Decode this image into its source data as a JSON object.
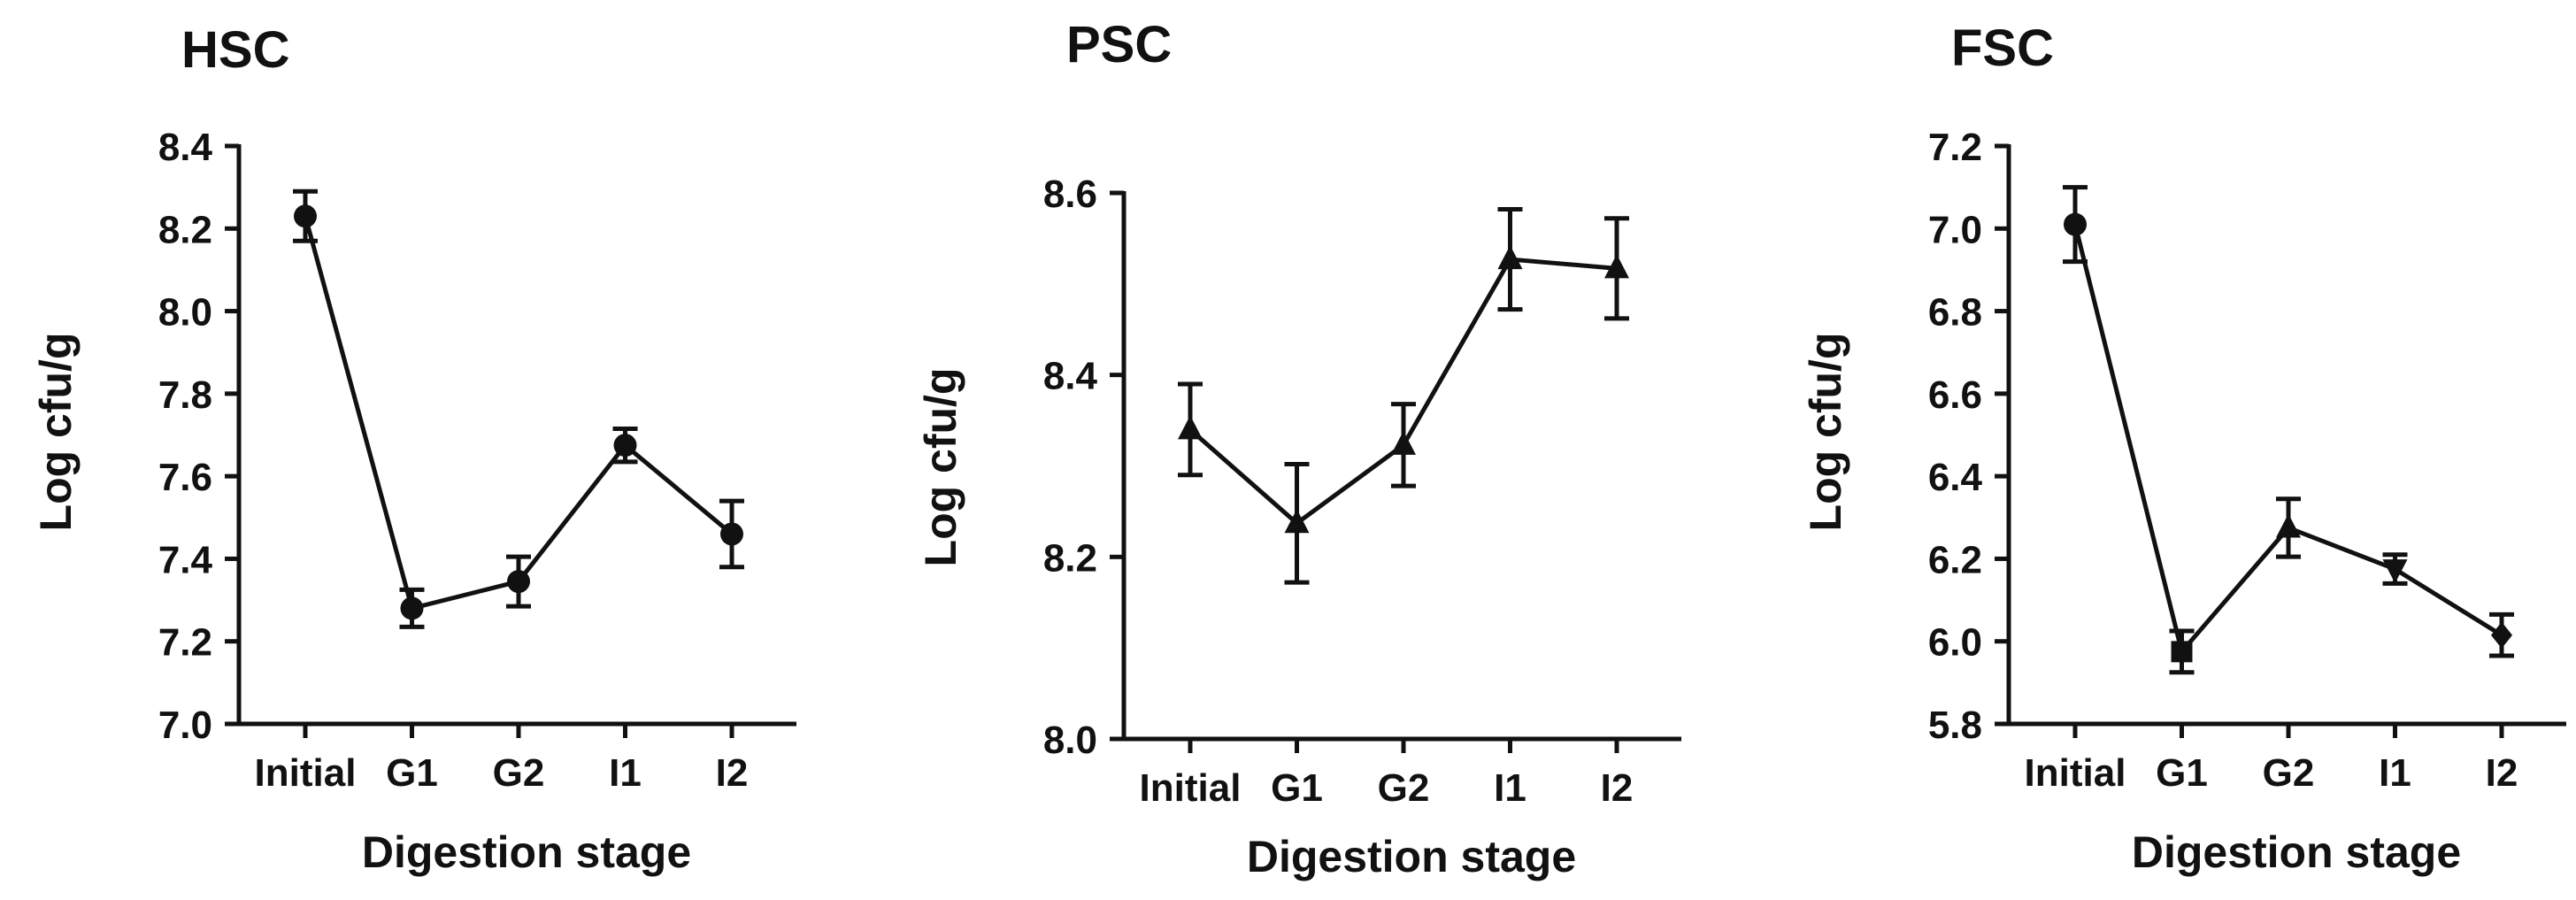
{
  "chart_data": [
    {
      "type": "line",
      "title": "HSC",
      "xlabel": "Digestion stage",
      "ylabel": "Log cfu/g",
      "categories": [
        "Initial",
        "G1",
        "G2",
        "I1",
        "I2"
      ],
      "ylim": [
        7.0,
        8.4
      ],
      "yticks": [
        "7.0",
        "7.2",
        "7.4",
        "7.6",
        "7.8",
        "8.0",
        "8.2",
        "8.4"
      ],
      "series": [
        {
          "values": [
            8.23,
            7.28,
            7.345,
            7.675,
            7.46
          ],
          "errors": [
            0.06,
            0.045,
            0.06,
            0.04,
            0.08
          ],
          "markers": [
            "circle",
            "circle",
            "circle",
            "circle",
            "circle"
          ]
        }
      ]
    },
    {
      "type": "line",
      "title": "PSC",
      "xlabel": "Digestion stage",
      "ylabel": "Log cfu/g",
      "categories": [
        "Initial",
        "G1",
        "G2",
        "I1",
        "I2"
      ],
      "ylim": [
        8.0,
        8.6
      ],
      "yticks": [
        "8.0",
        "8.2",
        "8.4",
        "8.6"
      ],
      "series": [
        {
          "values": [
            8.34,
            8.237,
            8.323,
            8.527,
            8.517
          ],
          "errors": [
            0.05,
            0.065,
            0.045,
            0.055,
            0.055
          ],
          "markers": [
            "triangle",
            "triangle",
            "triangle",
            "triangle",
            "triangle"
          ]
        }
      ]
    },
    {
      "type": "line",
      "title": "FSC",
      "xlabel": "Digestion stage",
      "ylabel": "Log cfu/g",
      "categories": [
        "Initial",
        "G1",
        "G2",
        "I1",
        "I2"
      ],
      "ylim": [
        5.8,
        7.2
      ],
      "yticks": [
        "5.8",
        "6.0",
        "6.2",
        "6.4",
        "6.6",
        "6.8",
        "7.0",
        "7.2"
      ],
      "series": [
        {
          "values": [
            7.01,
            5.975,
            6.275,
            6.175,
            6.015
          ],
          "errors": [
            0.09,
            0.05,
            0.07,
            0.035,
            0.05
          ],
          "markers": [
            "circle",
            "square",
            "triangle",
            "triangle-down",
            "diamond"
          ]
        }
      ]
    }
  ]
}
